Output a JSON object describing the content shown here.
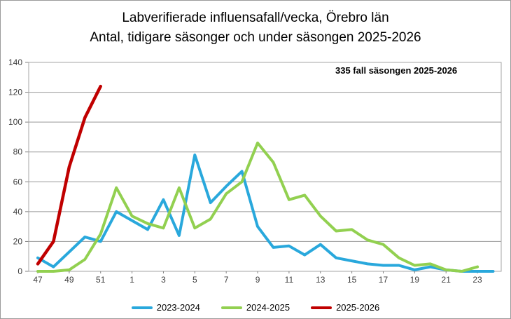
{
  "title": {
    "line1": "Labverifierade influensafall/vecka, Örebro län",
    "line2": "Antal, tidigare säsonger och under säsongen 2025-2026"
  },
  "annotation": "335 fall säsongen 2025-2026",
  "colors": {
    "series_2023_2024": "#29A8DC",
    "series_2024_2025": "#92D050",
    "series_2025_2026": "#C00000",
    "gridline": "#999999",
    "plot_border": "#a6a6a6"
  },
  "chart_data": {
    "type": "line",
    "title": "Labverifierade influensafall/vecka, Örebro län",
    "subtitle": "Antal, tidigare säsonger och under säsongen 2025-2026",
    "xlabel": "",
    "ylabel": "",
    "ylim": [
      0,
      140
    ],
    "ytick_step": 20,
    "grid": "horizontal",
    "legend_position": "bottom",
    "x_tick_every": 2,
    "categories": [
      "47",
      "48",
      "49",
      "50",
      "51",
      "52",
      "1",
      "2",
      "3",
      "4",
      "5",
      "6",
      "7",
      "8",
      "9",
      "10",
      "11",
      "12",
      "13",
      "14",
      "15",
      "16",
      "17",
      "18",
      "19",
      "20",
      "21",
      "22",
      "23",
      "24"
    ],
    "series": [
      {
        "name": "2023-2024",
        "color": "#29A8DC",
        "values": [
          9,
          3,
          13,
          23,
          20,
          40,
          34,
          28,
          48,
          24,
          78,
          46,
          57,
          67,
          30,
          16,
          17,
          11,
          18,
          9,
          7,
          5,
          4,
          4,
          1,
          3,
          1,
          0,
          0,
          0
        ]
      },
      {
        "name": "2024-2025",
        "color": "#92D050",
        "values": [
          0,
          0,
          1,
          8,
          25,
          56,
          37,
          32,
          29,
          56,
          29,
          35,
          52,
          60,
          86,
          73,
          48,
          51,
          37,
          27,
          28,
          21,
          18,
          9,
          4,
          5,
          1,
          0,
          3,
          null
        ]
      },
      {
        "name": "2025-2026",
        "color": "#C00000",
        "values": [
          5,
          20,
          70,
          103,
          124,
          null,
          null,
          null,
          null,
          null,
          null,
          null,
          null,
          null,
          null,
          null,
          null,
          null,
          null,
          null,
          null,
          null,
          null,
          null,
          null,
          null,
          null,
          null,
          null,
          null
        ]
      }
    ],
    "annotation": "335 fall säsongen 2025-2026"
  }
}
